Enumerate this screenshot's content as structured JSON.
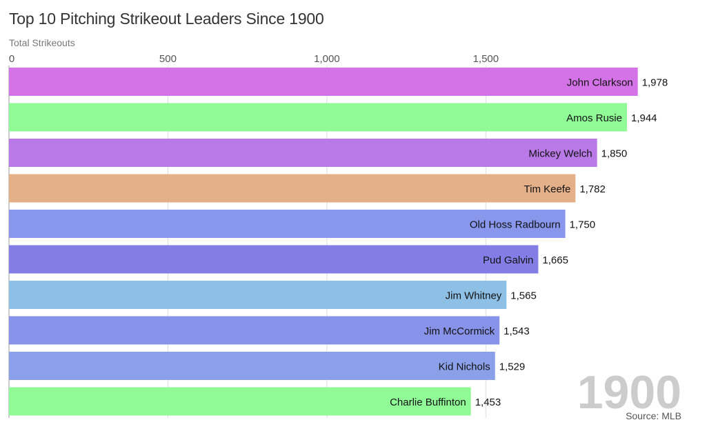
{
  "chart_data": {
    "type": "bar",
    "orientation": "horizontal",
    "title": "Top 10 Pitching Strikeout Leaders Since 1900",
    "xlabel": "Total Strikeouts",
    "ylabel": "",
    "xlim": [
      0,
      2000
    ],
    "ticks": [
      0,
      500,
      1000,
      1500
    ],
    "tick_labels": [
      "0",
      "500",
      "1,000",
      "1,500"
    ],
    "grid": true,
    "categories": [
      "John Clarkson",
      "Amos Rusie",
      "Mickey Welch",
      "Tim Keefe",
      "Old Hoss Radbourn",
      "Pud Galvin",
      "Jim Whitney",
      "Jim McCormick",
      "Kid Nichols",
      "Charlie Buffinton"
    ],
    "values": [
      1978,
      1944,
      1850,
      1782,
      1750,
      1665,
      1565,
      1543,
      1529,
      1453
    ],
    "value_labels": [
      "1,978",
      "1,944",
      "1,850",
      "1,782",
      "1,750",
      "1,665",
      "1,565",
      "1,543",
      "1,529",
      "1,453"
    ],
    "colors": [
      "#d473e8",
      "#8ffa96",
      "#b97ae7",
      "#e4b08a",
      "#8896ec",
      "#857de6",
      "#8ec0e6",
      "#8793e8",
      "#8aa1ea",
      "#8ffa96"
    ],
    "year_label": "1900",
    "source": "Source: MLB"
  }
}
